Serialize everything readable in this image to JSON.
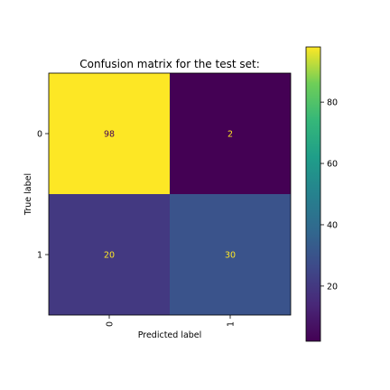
{
  "chart_data": {
    "type": "heatmap",
    "title": "Confusion matrix for the test set:",
    "xlabel": "Predicted label",
    "ylabel": "True label",
    "x_categories": [
      "0",
      "1"
    ],
    "y_categories": [
      "0",
      "1"
    ],
    "matrix": [
      [
        98,
        2
      ],
      [
        20,
        30
      ]
    ],
    "colormap": "viridis",
    "colorbar": {
      "min": 2,
      "max": 98,
      "ticks": [
        20,
        40,
        60,
        80
      ],
      "tick_labels": [
        "20",
        "40",
        "60",
        "80"
      ]
    },
    "grid": false
  }
}
